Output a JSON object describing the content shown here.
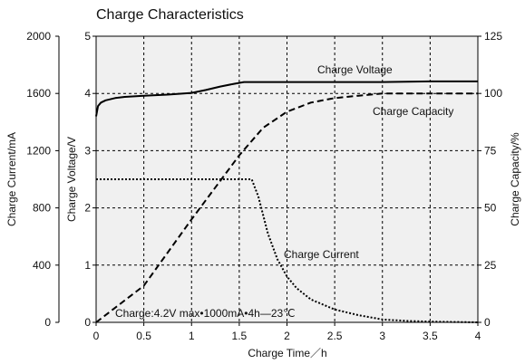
{
  "chart_data": {
    "type": "line",
    "title": "Charge Characteristics",
    "xlabel": "Charge Time／h",
    "xlim": [
      0,
      4
    ],
    "x_ticks": [
      0,
      0.5,
      1,
      1.5,
      2,
      2.5,
      3,
      3.5,
      4
    ],
    "x_tick_labels": [
      "0",
      "0.5",
      "1",
      "1.5",
      "2",
      "2.5",
      "3",
      "3.5",
      "4"
    ],
    "y_axes": {
      "current": {
        "label": "Charge Current/mA",
        "ylim": [
          0,
          2000
        ],
        "tick_labels": [
          "0",
          "400",
          "800",
          "1200",
          "1600",
          "2000"
        ],
        "position": "left-outer"
      },
      "voltage": {
        "label": "Charge Voltage/V",
        "ylim": [
          0,
          5
        ],
        "tick_labels": [
          "0",
          "1",
          "2",
          "3",
          "4",
          "5"
        ],
        "position": "left-inner"
      },
      "capacity": {
        "label": "Charge Capacity/%",
        "ylim": [
          0,
          125
        ],
        "tick_labels": [
          "0",
          "25",
          "50",
          "75",
          "100",
          "125"
        ],
        "position": "right"
      }
    },
    "grid": true,
    "series": [
      {
        "name": "Charge Voltage",
        "axis": "voltage",
        "style": "solid",
        "x": [
          0,
          0.02,
          0.05,
          0.1,
          0.2,
          0.3,
          0.5,
          0.75,
          1.0,
          1.15,
          1.3,
          1.45,
          1.55,
          2.0,
          2.5,
          3.0,
          3.5,
          4.0
        ],
        "y": [
          3.6,
          3.78,
          3.84,
          3.88,
          3.92,
          3.94,
          3.96,
          3.98,
          4.01,
          4.06,
          4.12,
          4.17,
          4.2,
          4.2,
          4.2,
          4.2,
          4.21,
          4.21
        ]
      },
      {
        "name": "Charge Capacity",
        "axis": "capacity",
        "style": "dashed",
        "x": [
          0,
          0.5,
          1.0,
          1.5,
          1.75,
          2.0,
          2.25,
          2.5,
          2.75,
          3.0,
          3.5,
          4.0
        ],
        "y": [
          0,
          16,
          45,
          73,
          85,
          92,
          96,
          98,
          99,
          100,
          100,
          100
        ]
      },
      {
        "name": "Charge Current",
        "axis": "current",
        "style": "dotted",
        "x": [
          0,
          0.5,
          1.0,
          1.5,
          1.63,
          1.7,
          1.8,
          1.9,
          2.0,
          2.1,
          2.25,
          2.5,
          2.75,
          3.0,
          3.25,
          3.5,
          4.0
        ],
        "y": [
          1000,
          1000,
          1000,
          1000,
          1000,
          880,
          620,
          440,
          320,
          240,
          160,
          90,
          50,
          20,
          10,
          5,
          0
        ]
      }
    ],
    "annotations": {
      "voltage_label": "Charge Voltage",
      "capacity_label": "Charge Capacity",
      "current_label": "Charge Current",
      "condition": "Charge:4.2V max•1000mA•4h—23℃"
    }
  }
}
